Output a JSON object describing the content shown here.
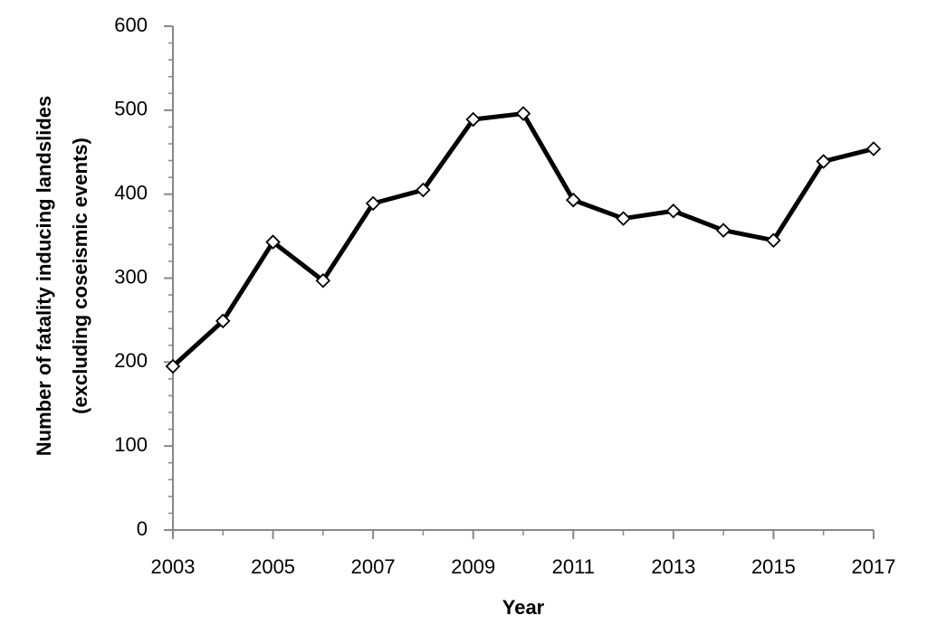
{
  "chart_data": {
    "type": "line",
    "xlabel": "Year",
    "ylabel": [
      "Number of fatality inducing landslides",
      "(excluding coseismic events)"
    ],
    "x": [
      2003,
      2004,
      2005,
      2006,
      2007,
      2008,
      2009,
      2010,
      2011,
      2012,
      2013,
      2014,
      2015,
      2016,
      2017
    ],
    "values": [
      195,
      249,
      343,
      297,
      389,
      405,
      489,
      496,
      393,
      371,
      380,
      357,
      345,
      439,
      454
    ],
    "color": "#000000",
    "xlim": [
      2003,
      2017
    ],
    "xticks": [
      2003,
      2005,
      2007,
      2009,
      2011,
      2013,
      2015,
      2017
    ],
    "ylim": [
      0,
      600
    ],
    "yticks": [
      0,
      100,
      200,
      300,
      400,
      500,
      600
    ],
    "grid": false
  }
}
